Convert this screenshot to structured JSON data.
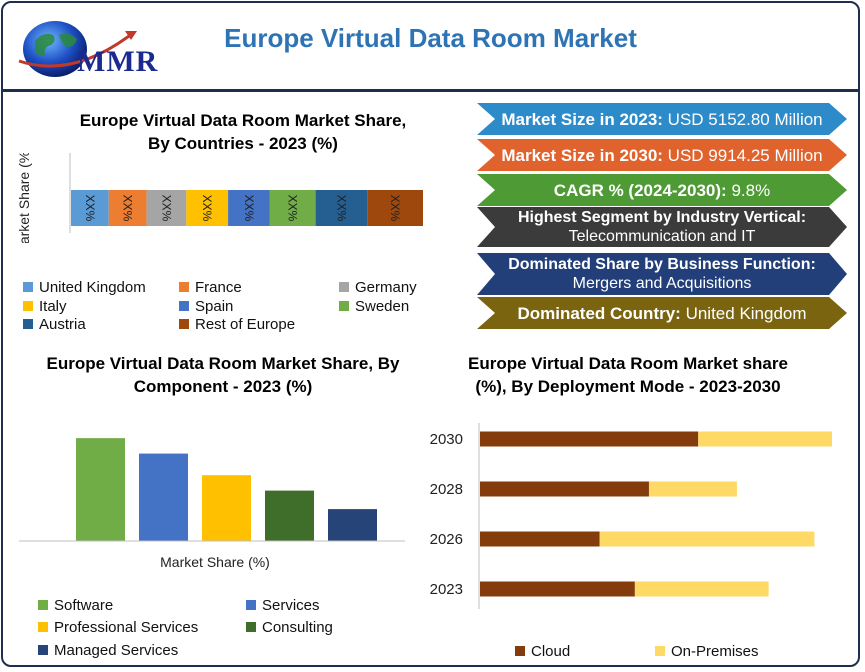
{
  "header": {
    "logo_text": "MMR",
    "title": "Europe Virtual Data Room Market"
  },
  "banners": [
    {
      "label": "Market Size in 2023:",
      "value": "USD 5152.80 Million",
      "color": "#2e8bc9"
    },
    {
      "label": "Market Size in 2030:",
      "value": "USD 9914.25 Million",
      "color": "#e0622c"
    },
    {
      "label": "CAGR % (2024-2030):",
      "value": "9.8%",
      "color": "#4e9a35"
    },
    {
      "label": "Highest Segment by Industry Vertical:",
      "value": "Telecommunication and IT",
      "color": "#3b3b3b"
    },
    {
      "label": "Dominated Share by Business Function:",
      "value": "Mergers and Acquisitions",
      "color": "#223f7a"
    },
    {
      "label": "Dominated Country:",
      "value": "United Kingdom",
      "color": "#7a6410"
    }
  ],
  "chart_data": [
    {
      "type": "bar",
      "orientation": "horizontal-stacked",
      "title": "Europe Virtual Data Room Market Share, By Countries - 2023 (%)",
      "ylabel": "Market Share (%)",
      "grid": false,
      "legend_position": "bottom",
      "series": [
        {
          "name": "United Kingdom",
          "label": "XX%",
          "color": "#5b9bd5"
        },
        {
          "name": "France",
          "label": "XX%",
          "color": "#ed7d31"
        },
        {
          "name": "Germany",
          "label": "XX%",
          "color": "#a5a5a5"
        },
        {
          "name": "Italy",
          "label": "XX%",
          "color": "#ffc000"
        },
        {
          "name": "Spain",
          "label": "XX%",
          "color": "#4472c4"
        },
        {
          "name": "Sweden",
          "label": "XX%",
          "color": "#70ad47"
        },
        {
          "name": "Austria",
          "label": "XX%",
          "color": "#255e91"
        },
        {
          "name": "Rest of Europe",
          "label": "XX%",
          "color": "#9e480e"
        }
      ],
      "values": [
        9.5,
        9.5,
        10,
        10.5,
        10.5,
        11.5,
        13,
        14
      ]
    },
    {
      "type": "bar",
      "title": "Europe Virtual Data Room Market Share, By Component - 2023 (%)",
      "xlabel": "Market Share (%)",
      "grid": false,
      "legend_position": "bottom",
      "categories": [
        "Software",
        "Services",
        "Professional Services",
        "Consulting",
        "Managed Services"
      ],
      "colors": [
        "#70ad47",
        "#4472c4",
        "#ffc000",
        "#3f6e2a",
        "#264478"
      ],
      "values": [
        100,
        85,
        64,
        49,
        31
      ],
      "ylim": [
        0,
        105
      ]
    },
    {
      "type": "bar",
      "orientation": "horizontal-stacked",
      "title": "Europe Virtual Data Room Market share (%), By Deployment Mode - 2023-2030",
      "grid": false,
      "legend_position": "bottom",
      "categories": [
        "2030",
        "2028",
        "2026",
        "2023"
      ],
      "series": [
        {
          "name": "Cloud",
          "color": "#843c0c",
          "values": [
            62,
            48,
            34,
            44
          ]
        },
        {
          "name": "On-Premises",
          "color": "#ffd966",
          "values": [
            38,
            25,
            61,
            38
          ]
        }
      ],
      "xlim": [
        0,
        100
      ]
    }
  ]
}
